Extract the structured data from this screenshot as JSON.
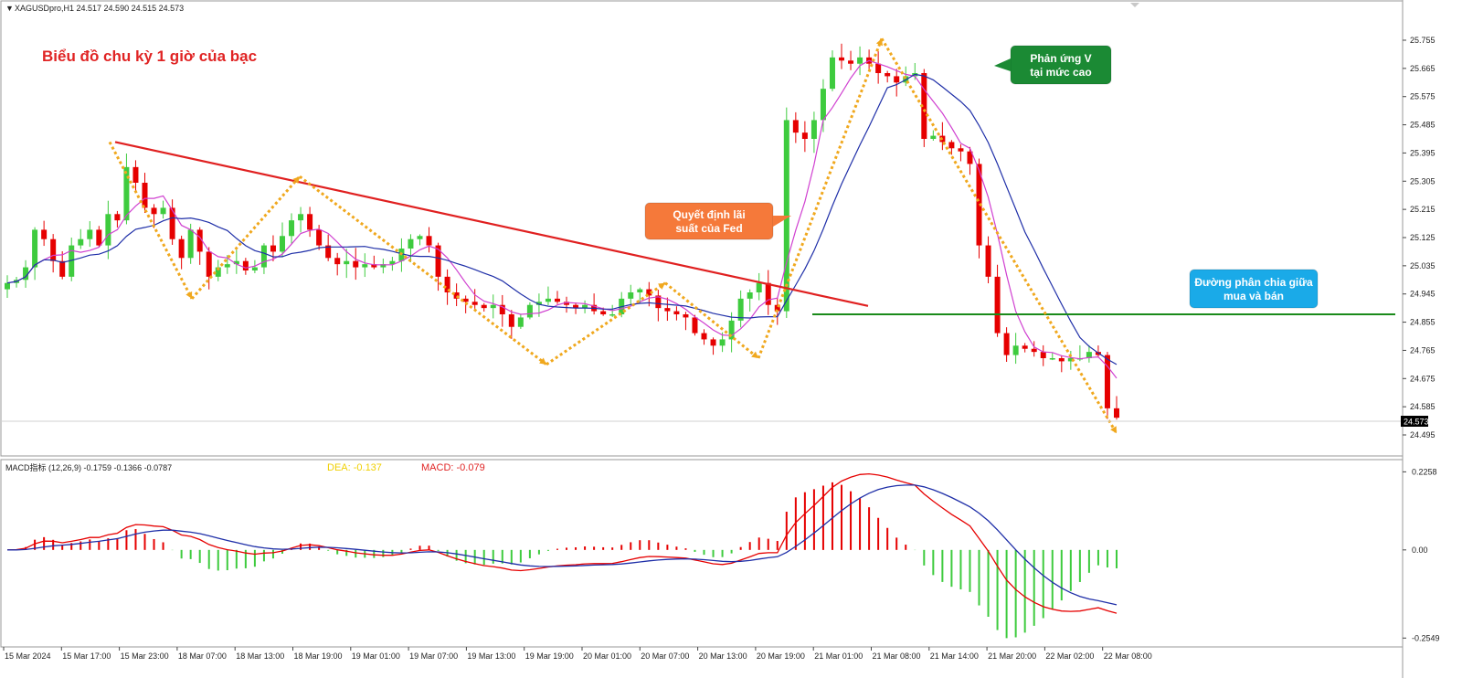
{
  "header": {
    "symbol_info": "XAGUSDpro,H1  24.517 24.590 24.515 24.573"
  },
  "chart_title": "Biểu đồ chu kỳ 1 giờ của bạc",
  "callouts": {
    "fed": "Quyết định lãi suất của Fed",
    "v_reaction": "Phản ứng V tại mức cao",
    "dividing_line": "Đường phân chia giữa mua và bán"
  },
  "macd_header": {
    "indicator": "MACD指标 (12,26,9) -0.1759 -0.1366 -0.0787",
    "dea": "DEA: -0.137",
    "macd": "MACD: -0.079"
  },
  "colors": {
    "bull": "#3ecb3e",
    "bear": "#e60000",
    "trendline": "#e02020",
    "support": "#1a8a1a",
    "zigzag": "#f0a81e",
    "ma_fast": "#d040d0",
    "ma_slow": "#1f2fa8",
    "callout_fed": "#f5793a",
    "callout_v": "#1b8a34",
    "callout_div": "#1aaae8"
  },
  "chart_data": [
    {
      "type": "candlestick",
      "title": "Biểu đồ chu kỳ 1 giờ của bạc",
      "symbol": "XAGUSDpro",
      "timeframe": "H1",
      "ohlc_last": {
        "open": 24.517,
        "high": 24.59,
        "low": 24.515,
        "close": 24.573
      },
      "current_price_label": "24.573",
      "current_price": 24.573,
      "ylim": [
        24.46,
        25.79
      ],
      "y_ticks": [
        "25.755",
        "25.665",
        "25.575",
        "25.485",
        "25.395",
        "25.305",
        "25.215",
        "25.125",
        "25.035",
        "24.945",
        "24.855",
        "24.765",
        "24.675",
        "24.585",
        "24.495"
      ],
      "x_ticks": [
        "15 Mar 2024",
        "15 Mar 17:00",
        "15 Mar 23:00",
        "18 Mar 07:00",
        "18 Mar 13:00",
        "18 Mar 19:00",
        "19 Mar 01:00",
        "19 Mar 07:00",
        "19 Mar 13:00",
        "19 Mar 19:00",
        "20 Mar 01:00",
        "20 Mar 07:00",
        "20 Mar 13:00",
        "20 Mar 19:00",
        "21 Mar 01:00",
        "21 Mar 08:00",
        "21 Mar 14:00",
        "21 Mar 20:00",
        "22 Mar 02:00",
        "22 Mar 08:00"
      ],
      "close_path": [
        24.98,
        24.99,
        25.03,
        25.15,
        25.12,
        25.05,
        25.0,
        25.1,
        25.12,
        25.15,
        25.1,
        25.2,
        25.18,
        25.35,
        25.3,
        25.22,
        25.2,
        25.22,
        25.12,
        25.06,
        25.15,
        25.08,
        25.0,
        25.03,
        25.04,
        25.05,
        25.02,
        25.03,
        25.1,
        25.08,
        25.13,
        25.18,
        25.2,
        25.15,
        25.1,
        25.06,
        25.04,
        25.05,
        25.03,
        25.04,
        25.03,
        25.04,
        25.05,
        25.09,
        25.12,
        25.13,
        25.1,
        25.0,
        24.95,
        24.93,
        24.92,
        24.91,
        24.9,
        24.91,
        24.88,
        24.84,
        24.87,
        24.91,
        24.92,
        24.93,
        24.92,
        24.91,
        24.9,
        24.91,
        24.89,
        24.88,
        24.88,
        24.93,
        24.95,
        24.96,
        24.94,
        24.9,
        24.89,
        24.88,
        24.87,
        24.82,
        24.8,
        24.78,
        24.8,
        24.86,
        24.93,
        24.95,
        24.98,
        24.91,
        24.89,
        25.5,
        25.46,
        25.44,
        25.5,
        25.6,
        25.7,
        25.69,
        25.68,
        25.7,
        25.68,
        25.65,
        25.64,
        25.62,
        25.64,
        25.65,
        25.44,
        25.45,
        25.43,
        25.41,
        25.4,
        25.36,
        25.1,
        25.0,
        24.82,
        24.75,
        24.78,
        24.77,
        24.76,
        24.74,
        24.74,
        24.73,
        24.74,
        24.74,
        24.76,
        24.75,
        24.58,
        24.55
      ],
      "series": [
        {
          "name": "",
          "kind": "moving-average-fast"
        },
        {
          "name": "",
          "kind": "moving-average-slow"
        }
      ],
      "trendline": {
        "from": [
          "15 Mar 17:00",
          25.43
        ],
        "to": [
          "21 Mar 01:00",
          24.93
        ]
      },
      "support_level": 24.88,
      "zigzag": [
        25.43,
        24.93,
        25.32,
        24.72,
        24.98,
        24.74,
        25.76,
        24.5
      ]
    },
    {
      "type": "bar+line",
      "indicator": "MACD (12,26,9)",
      "values": [
        -0.1759,
        -0.1366,
        -0.0787
      ],
      "ylim": [
        -0.27,
        0.24
      ],
      "y_ticks": [
        "0.2258",
        "0.00",
        "-0.2549"
      ],
      "dea_label": "DEA: -0.137",
      "macd_label": "MACD: -0.079"
    }
  ]
}
